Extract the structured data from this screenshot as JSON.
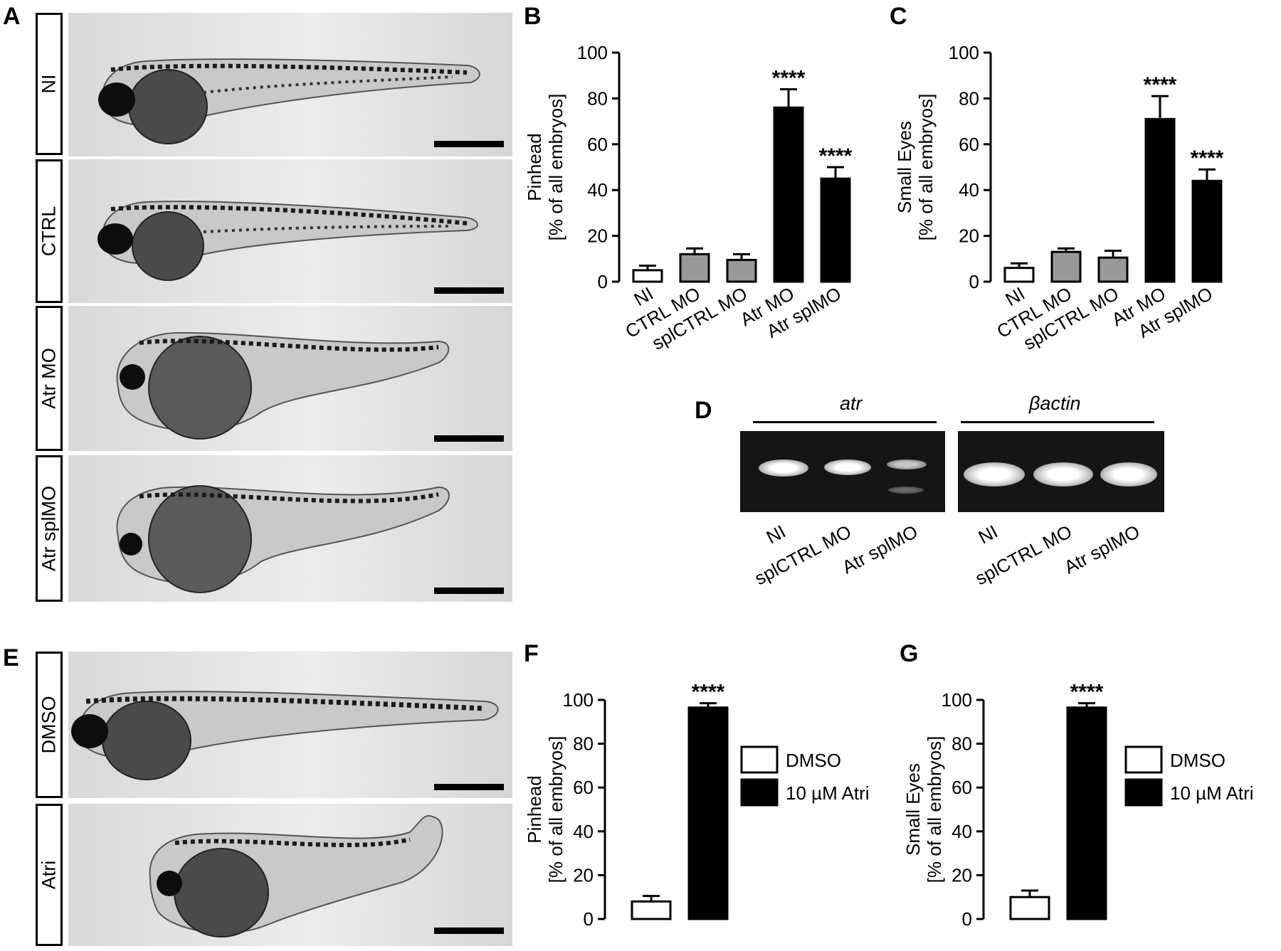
{
  "panels": {
    "A": "A",
    "B": "B",
    "C": "C",
    "D": "D",
    "E": "E",
    "F": "F",
    "G": "G"
  },
  "panel_a": {
    "rows": [
      {
        "label": "NI"
      },
      {
        "label": "CTRL"
      },
      {
        "label": "Atr MO"
      },
      {
        "label": "Atr splMO"
      }
    ]
  },
  "panel_e": {
    "rows": [
      {
        "label": "DMSO"
      },
      {
        "label": "Atri"
      }
    ]
  },
  "panel_d": {
    "genes": [
      "atr",
      "βactin"
    ],
    "lanes_left": [
      "NI",
      "splCTRL MO",
      "Atr splMO"
    ],
    "lanes_right": [
      "NI",
      "splCTRL MO",
      "Atr splMO"
    ]
  },
  "chart_data": [
    {
      "id": "B",
      "type": "bar",
      "categories": [
        "NI",
        "CTRL MO",
        "splCTRL MO",
        "Atr MO",
        "Atr splMO"
      ],
      "values": [
        5,
        12,
        9.5,
        76,
        45
      ],
      "errors": [
        2,
        2.5,
        2.5,
        8,
        5
      ],
      "colors": [
        "#ffffff",
        "#999999",
        "#999999",
        "#000000",
        "#000000"
      ],
      "significance": [
        "",
        "",
        "",
        "****",
        "****"
      ],
      "ylabel": [
        "Pinhead",
        "[% of all embryos]"
      ],
      "ylim": [
        0,
        100
      ],
      "yticks": [
        0,
        20,
        40,
        60,
        80,
        100
      ],
      "legend": null
    },
    {
      "id": "C",
      "type": "bar",
      "categories": [
        "NI",
        "CTRL MO",
        "splCTRL MO",
        "Atr MO",
        "Atr splMO"
      ],
      "values": [
        6,
        13,
        10.5,
        71,
        44
      ],
      "errors": [
        2,
        1.5,
        3,
        10,
        5
      ],
      "colors": [
        "#ffffff",
        "#999999",
        "#999999",
        "#000000",
        "#000000"
      ],
      "significance": [
        "",
        "",
        "",
        "****",
        "****"
      ],
      "ylabel": [
        "Small Eyes",
        "[% of all embryos]"
      ],
      "ylim": [
        0,
        100
      ],
      "yticks": [
        0,
        20,
        40,
        60,
        80,
        100
      ],
      "legend": null
    },
    {
      "id": "F",
      "type": "bar",
      "categories": [
        "DMSO",
        "10 µM Atri"
      ],
      "values": [
        8,
        96.5
      ],
      "errors": [
        2.5,
        2
      ],
      "colors": [
        "#ffffff",
        "#000000"
      ],
      "significance": [
        "",
        "****"
      ],
      "ylabel": [
        "Pinhead",
        "[% of all embryos]"
      ],
      "ylim": [
        0,
        100
      ],
      "yticks": [
        0,
        20,
        40,
        60,
        80,
        100
      ],
      "legend": [
        "DMSO",
        "10 µM Atri"
      ]
    },
    {
      "id": "G",
      "type": "bar",
      "categories": [
        "DMSO",
        "10 µM Atri"
      ],
      "values": [
        10,
        96.5
      ],
      "errors": [
        3,
        2
      ],
      "colors": [
        "#ffffff",
        "#000000"
      ],
      "significance": [
        "",
        "****"
      ],
      "ylabel": [
        "Small Eyes",
        "[% of all embryos]"
      ],
      "ylim": [
        0,
        100
      ],
      "yticks": [
        0,
        20,
        40,
        60,
        80,
        100
      ],
      "legend": [
        "DMSO",
        "10 µM Atri"
      ]
    }
  ]
}
